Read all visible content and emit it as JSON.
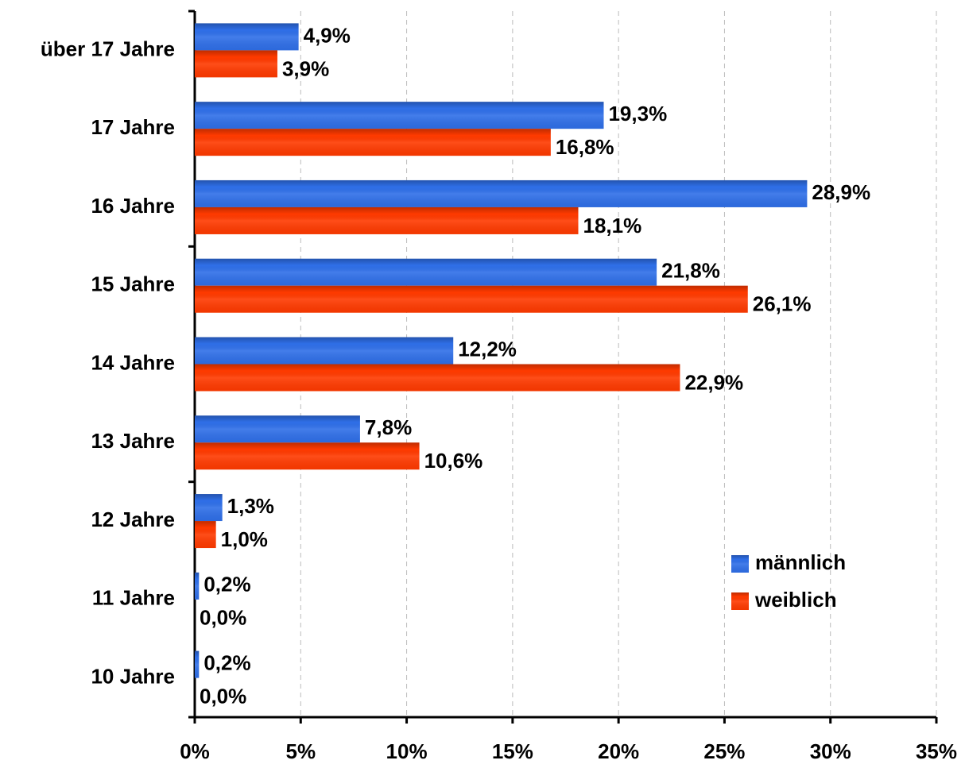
{
  "chart_data": {
    "type": "hbar",
    "categories": [
      "über 17 Jahre",
      "17 Jahre",
      "16 Jahre",
      "15 Jahre",
      "14 Jahre",
      "13 Jahre",
      "12 Jahre",
      "11 Jahre",
      "10 Jahre"
    ],
    "series": [
      {
        "name": "männlich",
        "color": "#2f6fe8",
        "values": [
          4.9,
          19.3,
          28.9,
          21.8,
          12.2,
          7.8,
          1.3,
          0.2,
          0.2
        ],
        "value_labels": [
          "4,9%",
          "19,3%",
          "28,9%",
          "21,8%",
          "12,2%",
          "7,8%",
          "1,3%",
          "0,2%",
          "0,2%"
        ]
      },
      {
        "name": "weiblich",
        "color": "#ff3a00",
        "values": [
          3.9,
          16.8,
          18.1,
          26.1,
          22.9,
          10.6,
          1.0,
          0.0,
          0.0
        ],
        "value_labels": [
          "3,9%",
          "16,8%",
          "18,1%",
          "26,1%",
          "22,9%",
          "10,6%",
          "1,0%",
          "0,0%",
          "0,0%"
        ]
      }
    ],
    "xlim": [
      0,
      35
    ],
    "xticks": [
      {
        "value": 0,
        "label": "0%"
      },
      {
        "value": 5,
        "label": "5%"
      },
      {
        "value": 10,
        "label": "10%"
      },
      {
        "value": 15,
        "label": "15%"
      },
      {
        "value": 20,
        "label": "20%"
      },
      {
        "value": 25,
        "label": "25%"
      },
      {
        "value": 30,
        "label": "30%"
      },
      {
        "value": 35,
        "label": "35%"
      }
    ],
    "grid": true,
    "legend": "lower right"
  }
}
